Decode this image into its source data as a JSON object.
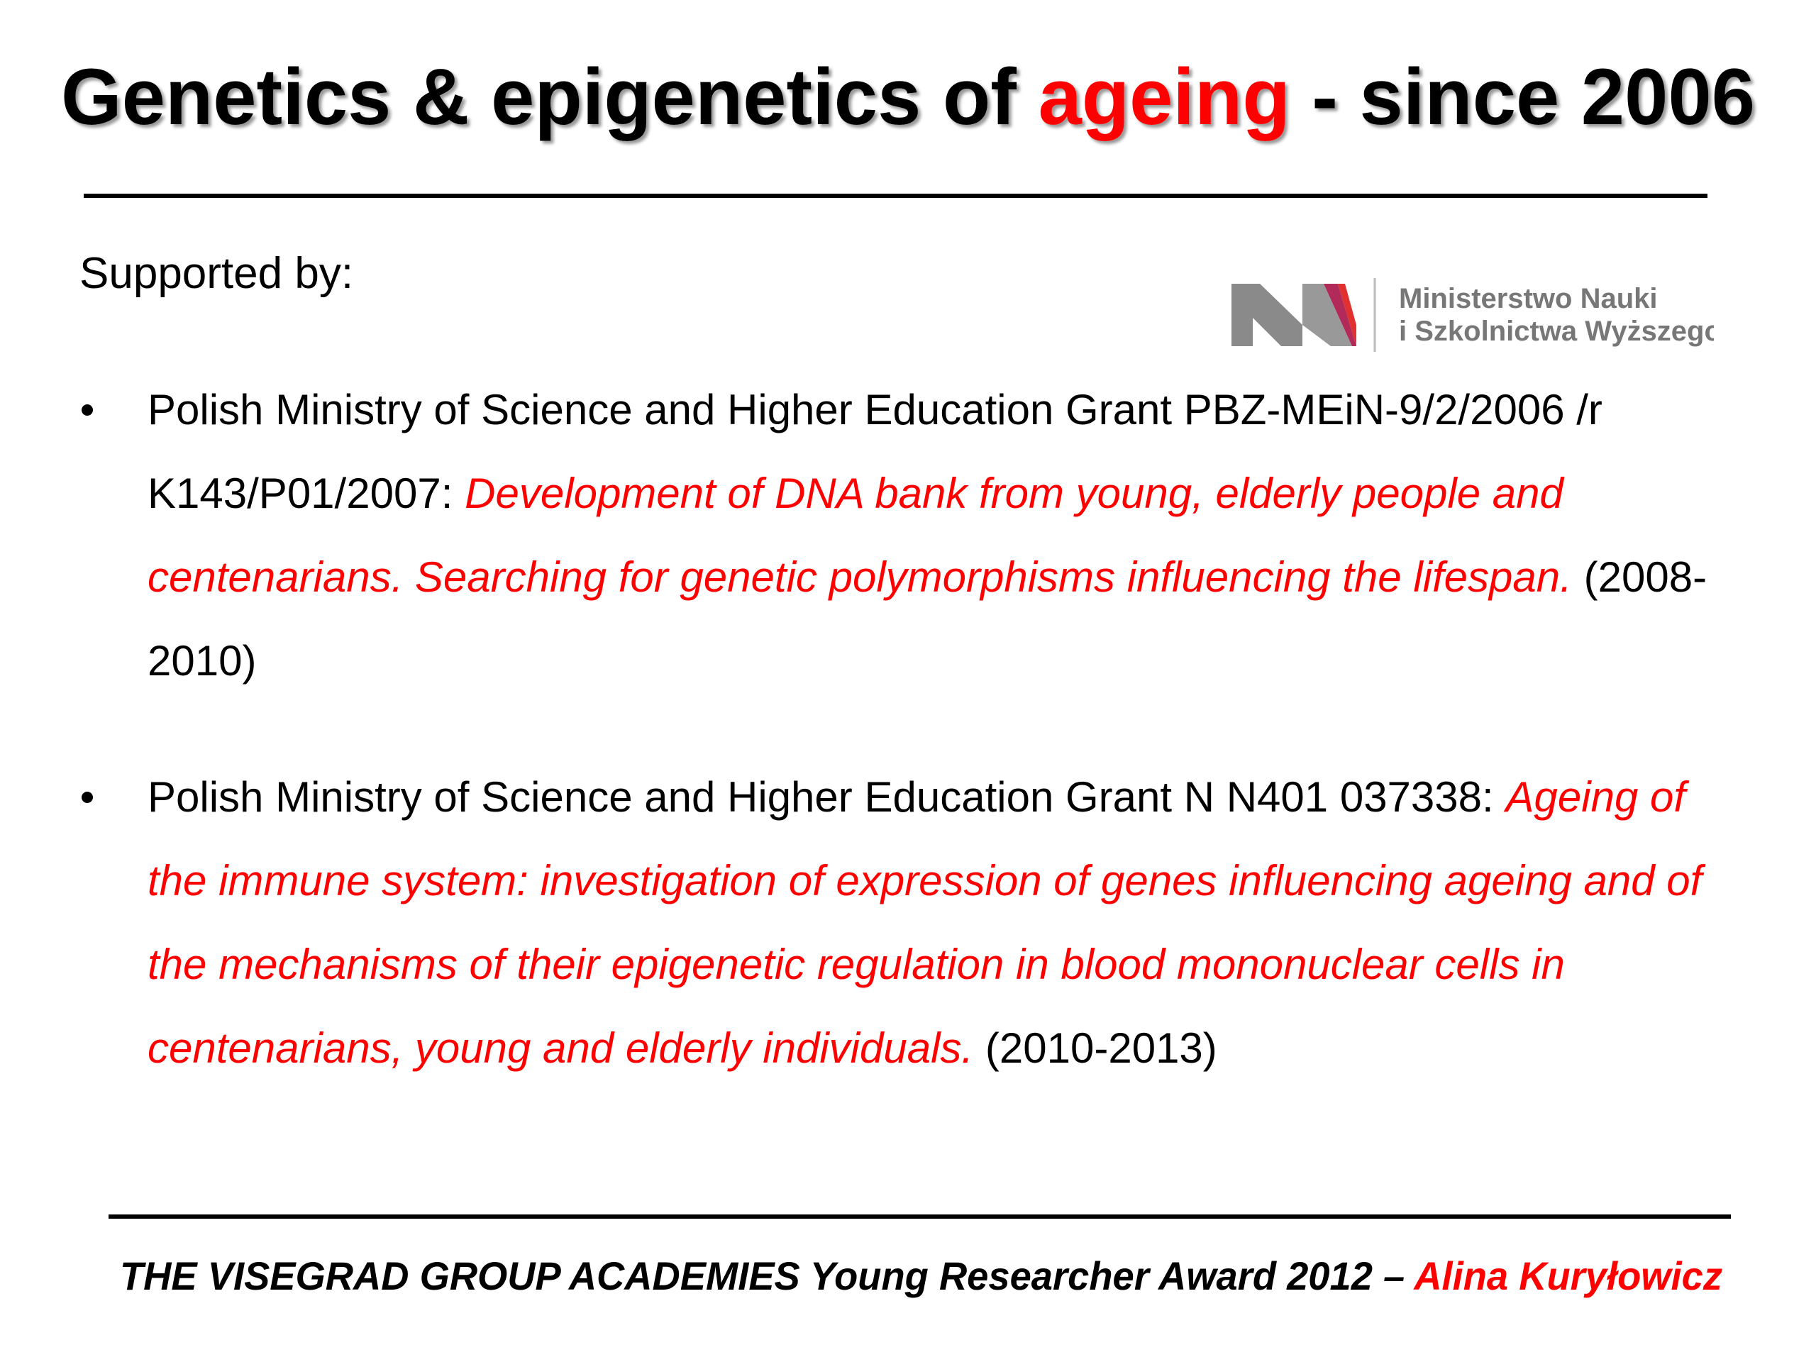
{
  "title": {
    "before": "Genetics & epigenetics of",
    "highlight": "ageing",
    "after": "- since 2006"
  },
  "supported_by": "Supported by:",
  "logo": {
    "line1": "Ministerstwo Nauki",
    "line2": "i Szkolnictwa Wyższego"
  },
  "grants": [
    {
      "text": "Polish Ministry of Science and Higher Education Grant  PBZ-MEiN-9/2/2006 /r K143/P01/2007:",
      "project": "Development of DNA bank from young, elderly people and centenarians. Searching for genetic polymorphisms influencing the lifespan.",
      "years": "(2008-2010)"
    },
    {
      "text": "Polish Ministry of Science and Higher Education Grant N N401 037338:",
      "project": "Ageing of the immune system: investigation of expression of genes influencing ageing and of the mechanisms of their epigenetic regulation in blood mononuclear cells in centenarians, young and elderly individuals.",
      "years": "(2010-2013)"
    }
  ],
  "footer": {
    "text": "THE VISEGRAD GROUP ACADEMIES Young Researcher Award 2012 –",
    "author": "Alina Kuryłowicz"
  }
}
